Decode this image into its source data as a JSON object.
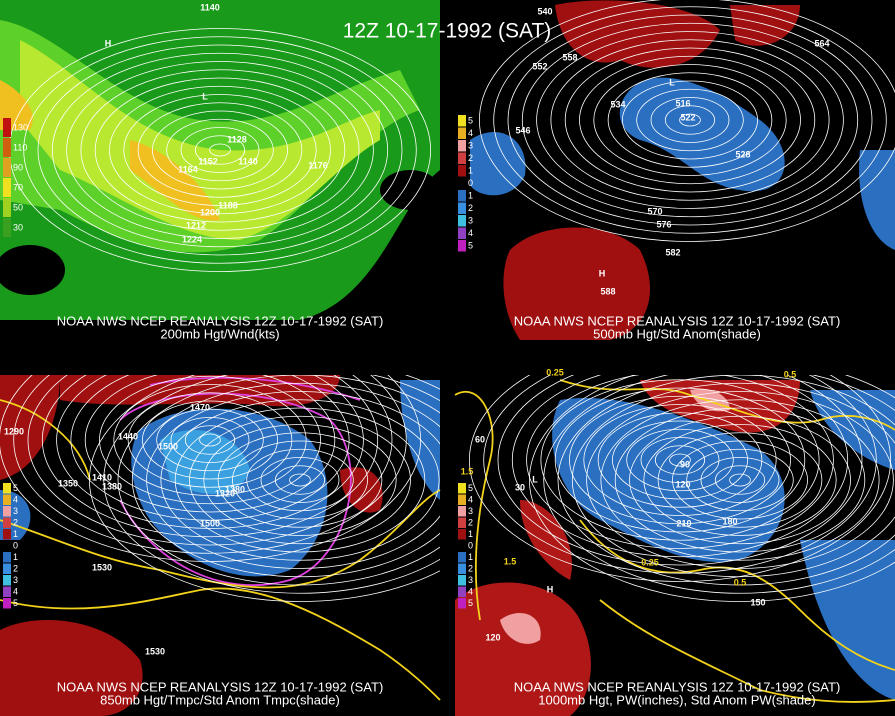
{
  "title": "12Z 10-17-1992 (SAT)",
  "panels": [
    {
      "caption": "NOAA NWS NCEP REANALYSIS 12Z 10-17-1992 (SAT)",
      "subtitle": "200mb Hgt/Wnd(kts)",
      "legend": [
        "130",
        "110",
        "90",
        "70",
        "50",
        "30"
      ],
      "labels": [
        "1140",
        "H",
        "L",
        "1128",
        "1152",
        "1164",
        "1140",
        "1176",
        "1188",
        "1200",
        "1212",
        "1224"
      ]
    },
    {
      "caption": "NOAA NWS NCEP REANALYSIS 12Z 10-17-1992 (SAT)",
      "subtitle": "500mb Hgt/Std Anom(shade)",
      "legend": [
        "5",
        "4",
        "3",
        "2",
        "1",
        "0",
        "1",
        "2",
        "3",
        "4",
        "5"
      ],
      "labels": [
        "540",
        "552",
        "558",
        "564",
        "546",
        "534",
        "516",
        "522",
        "528",
        "570",
        "576",
        "582",
        "588",
        "H",
        "L"
      ]
    },
    {
      "caption": "NOAA NWS NCEP REANALYSIS 12Z 10-17-1992 (SAT)",
      "subtitle": "850mb Hgt/Tmpc/Std Anom Tmpc(shade)",
      "legend": [
        "5",
        "4",
        "3",
        "2",
        "1",
        "0",
        "1",
        "2",
        "3",
        "4",
        "5"
      ],
      "labels": [
        "1440",
        "1500",
        "1410",
        "1380",
        "1350",
        "1320",
        "1530",
        "1470",
        "1290",
        "1380",
        "1500",
        "1530"
      ]
    },
    {
      "caption": "NOAA NWS NCEP REANALYSIS 12Z 10-17-1992 (SAT)",
      "subtitle": "1000mb Hgt, PW(inches), Std Anom PW(shade)",
      "legend": [
        "5",
        "4",
        "3",
        "2",
        "1",
        "0",
        "1",
        "2",
        "3",
        "4",
        "5"
      ],
      "labels": [
        "0.25",
        "0.5",
        "60",
        "30",
        "90",
        "120",
        "180",
        "210",
        "150",
        "1.5",
        "0.25",
        "0.5",
        "120",
        "1.5",
        "H",
        "L"
      ]
    }
  ]
}
